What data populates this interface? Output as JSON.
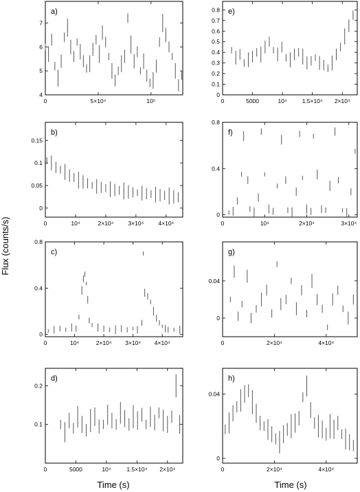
{
  "figure": {
    "ylabel": "Flux (counts/s)",
    "xlabel_left": "Time (s)",
    "xlabel_right": "Time (s)"
  },
  "chart_data": [
    {
      "type": "scatter",
      "panel": "a)",
      "xlim": [
        0,
        130000
      ],
      "ylim": [
        4,
        7.9
      ],
      "xticks": [
        {
          "v": 0,
          "t": "0"
        },
        {
          "v": 50000,
          "t": "5×10⁴"
        },
        {
          "v": 100000,
          "t": "10⁵"
        }
      ],
      "yticks": [
        {
          "v": 4,
          "t": "4"
        },
        {
          "v": 5,
          "t": "5"
        },
        {
          "v": 6,
          "t": "6"
        },
        {
          "v": 7,
          "t": "7"
        }
      ],
      "bar_step": 0.5,
      "x": [
        0,
        3000,
        6000,
        9000,
        12000,
        15000,
        18000,
        21000,
        24000,
        27000,
        30000,
        33000,
        36000,
        39000,
        42000,
        45000,
        48000,
        51000,
        54000,
        57000,
        60000,
        63000,
        66000,
        69000,
        72000,
        75000,
        78000,
        81000,
        84000,
        87000,
        90000,
        93000,
        96000,
        99000,
        102000,
        105000,
        108000,
        111000,
        114000,
        117000,
        120000,
        123000,
        126000,
        129000
      ],
      "y": [
        6.0,
        5.7,
        6.3,
        5.2,
        4.7,
        5.4,
        6.4,
        6.8,
        6.0,
        5.6,
        6.2,
        5.8,
        5.4,
        5.1,
        5.3,
        5.9,
        6.3,
        5.7,
        6.6,
        6.2,
        5.6,
        5.0,
        4.6,
        5.0,
        5.3,
        5.6,
        7.2,
        6.1,
        5.4,
        5.8,
        5.0,
        5.4,
        4.8,
        4.5,
        4.6,
        5.2,
        6.2,
        7.0,
        6.5,
        6.0,
        5.6,
        5.0,
        4.4,
        4.8
      ]
    },
    {
      "type": "scatter",
      "panel": "b)",
      "xlim": [
        0,
        45500
      ],
      "ylim": [
        -0.02,
        0.19
      ],
      "xticks": [
        {
          "v": 0,
          "t": "0"
        },
        {
          "v": 10000,
          "t": "10⁴"
        },
        {
          "v": 20000,
          "t": "2×10⁴"
        },
        {
          "v": 30000,
          "t": "3×10⁴"
        },
        {
          "v": 40000,
          "t": "4×10⁴"
        }
      ],
      "yticks": [
        {
          "v": 0,
          "t": "0"
        },
        {
          "v": 0.05,
          "t": "0.05"
        },
        {
          "v": 0.1,
          "t": "0.1"
        },
        {
          "v": 0.15,
          "t": "0.15"
        }
      ],
      "bar_step": 0.025,
      "x": [
        500,
        2000,
        3500,
        5000,
        6500,
        8000,
        9500,
        11000,
        12500,
        14000,
        15500,
        17000,
        18500,
        20000,
        21500,
        23000,
        24500,
        26000,
        27500,
        29000,
        30500,
        32000,
        33500,
        35000,
        36500,
        38000,
        39500,
        41000,
        42500,
        44000
      ],
      "y": [
        0.105,
        0.1,
        0.09,
        0.085,
        0.08,
        0.072,
        0.068,
        0.062,
        0.058,
        0.055,
        0.05,
        0.048,
        0.046,
        0.044,
        0.042,
        0.04,
        0.039,
        0.038,
        0.036,
        0.035,
        0.034,
        0.033,
        0.032,
        0.031,
        0.03,
        0.029,
        0.028,
        0.027,
        0.025,
        0.024
      ]
    },
    {
      "type": "scatter",
      "panel": "c)",
      "xlim": [
        0,
        47000
      ],
      "ylim": [
        -0.02,
        0.8
      ],
      "xticks": [
        {
          "v": 0,
          "t": "0"
        },
        {
          "v": 10000,
          "t": "10⁴"
        },
        {
          "v": 20000,
          "t": "2×10⁴"
        },
        {
          "v": 30000,
          "t": "3×10⁴"
        },
        {
          "v": 40000,
          "t": "4×10⁴"
        }
      ],
      "yticks": [
        {
          "v": 0,
          "t": "0"
        },
        {
          "v": 0.4,
          "t": "0.4"
        },
        {
          "v": 0.8,
          "t": "0.8"
        }
      ],
      "bar_step": 0.05,
      "x": [
        1000,
        3000,
        5000,
        7000,
        9000,
        10500,
        11500,
        12500,
        13000,
        13500,
        14000,
        14500,
        15000,
        16000,
        18000,
        20000,
        22000,
        24000,
        26000,
        28000,
        30000,
        31500,
        33000,
        33500,
        34000,
        35000,
        36000,
        37000,
        38000,
        39000,
        40000,
        41000,
        42000,
        44000,
        46000
      ],
      "y": [
        0.03,
        0.04,
        0.05,
        0.04,
        0.06,
        0.05,
        0.15,
        0.38,
        0.48,
        0.52,
        0.44,
        0.3,
        0.12,
        0.08,
        0.06,
        0.05,
        0.04,
        0.04,
        0.05,
        0.04,
        0.05,
        0.04,
        0.1,
        0.7,
        0.36,
        0.33,
        0.28,
        0.2,
        0.14,
        0.1,
        0.07,
        0.05,
        0.04,
        0.04,
        0.04
      ]
    },
    {
      "type": "scatter",
      "panel": "d)",
      "xlim": [
        0,
        22500
      ],
      "ylim": [
        0,
        0.245
      ],
      "xticks": [
        {
          "v": 0,
          "t": "0"
        },
        {
          "v": 5000,
          "t": "5000"
        },
        {
          "v": 10000,
          "t": "10⁴"
        },
        {
          "v": 15000,
          "t": "1.5×10⁴"
        },
        {
          "v": 20000,
          "t": "2×10⁴"
        }
      ],
      "yticks": [
        {
          "v": 0.1,
          "t": "0.1"
        },
        {
          "v": 0.2,
          "t": "0.2"
        }
      ],
      "bar_step": 0.04,
      "x": [
        2500,
        3200,
        3900,
        4600,
        5300,
        6000,
        6700,
        7400,
        8100,
        8800,
        9500,
        10200,
        10900,
        11600,
        12300,
        13000,
        13700,
        14400,
        15100,
        15800,
        16500,
        17200,
        17900,
        18600,
        19300,
        20000,
        20700,
        21400,
        22000
      ],
      "y": [
        0.1,
        0.08,
        0.11,
        0.09,
        0.12,
        0.1,
        0.085,
        0.11,
        0.12,
        0.095,
        0.1,
        0.125,
        0.11,
        0.1,
        0.13,
        0.115,
        0.1,
        0.12,
        0.11,
        0.125,
        0.1,
        0.12,
        0.105,
        0.13,
        0.11,
        0.1,
        0.12,
        0.2,
        0.1
      ]
    },
    {
      "type": "scatter",
      "panel": "e)",
      "xlim": [
        0,
        22500
      ],
      "ylim": [
        0,
        0.88
      ],
      "xticks": [
        {
          "v": 0,
          "t": "0"
        },
        {
          "v": 5000,
          "t": "5000"
        },
        {
          "v": 10000,
          "t": "10⁴"
        },
        {
          "v": 15000,
          "t": "1.5×10⁴"
        },
        {
          "v": 20000,
          "t": "2×10⁴"
        }
      ],
      "yticks": [
        {
          "v": 0,
          "t": "0"
        },
        {
          "v": 0.1,
          "t": "0.1"
        },
        {
          "v": 0.2,
          "t": "0.2"
        },
        {
          "v": 0.3,
          "t": "0.3"
        },
        {
          "v": 0.4,
          "t": "0.4"
        },
        {
          "v": 0.5,
          "t": "0.5"
        },
        {
          "v": 0.6,
          "t": "0.6"
        },
        {
          "v": 0.7,
          "t": "0.7"
        },
        {
          "v": 0.8,
          "t": "0.8"
        }
      ],
      "bar_step": 0.1,
      "x": [
        1500,
        2200,
        2900,
        3600,
        4300,
        5000,
        5700,
        6400,
        7100,
        7800,
        8500,
        9200,
        9900,
        10600,
        11300,
        12000,
        12700,
        13400,
        14100,
        14800,
        15500,
        16200,
        16900,
        17600,
        18300,
        19000,
        19700,
        20400,
        21100,
        21800
      ],
      "y": [
        0.42,
        0.35,
        0.38,
        0.3,
        0.33,
        0.36,
        0.4,
        0.38,
        0.45,
        0.5,
        0.42,
        0.38,
        0.45,
        0.35,
        0.33,
        0.38,
        0.4,
        0.36,
        0.3,
        0.32,
        0.35,
        0.3,
        0.28,
        0.25,
        0.3,
        0.38,
        0.45,
        0.55,
        0.65,
        0.75
      ]
    },
    {
      "type": "scatter",
      "panel": "f)",
      "xlim": [
        0,
        32000
      ],
      "ylim": [
        -0.02,
        0.8
      ],
      "xticks": [
        {
          "v": 0,
          "t": "0"
        },
        {
          "v": 10000,
          "t": "10⁴"
        },
        {
          "v": 20000,
          "t": "2×10⁴"
        },
        {
          "v": 30000,
          "t": "3×10⁴"
        }
      ],
      "yticks": [
        {
          "v": 0,
          "t": "0"
        },
        {
          "v": 0.4,
          "t": "0.4"
        },
        {
          "v": 0.8,
          "t": "0.8"
        }
      ],
      "bar_step": 0.06,
      "x": [
        1500,
        2500,
        3500,
        4500,
        5000,
        6000,
        6500,
        7500,
        8500,
        9200,
        10000,
        11000,
        12000,
        13000,
        14000,
        15000,
        15500,
        16500,
        17500,
        18300,
        19000,
        20000,
        21000,
        21600,
        22500,
        23500,
        24500,
        25500,
        26700,
        27500,
        28500,
        29500,
        30500,
        31500
      ],
      "y": [
        0.02,
        0.03,
        0.12,
        0.35,
        0.68,
        0.3,
        0.05,
        0.02,
        0.15,
        0.72,
        0.35,
        0.05,
        0.03,
        0.25,
        0.65,
        0.3,
        0.04,
        0.02,
        0.2,
        0.7,
        0.32,
        0.05,
        0.03,
        0.68,
        0.35,
        0.05,
        0.04,
        0.25,
        0.72,
        0.3,
        0.04,
        0.02,
        0.2,
        0.55
      ]
    },
    {
      "type": "scatter",
      "panel": "g)",
      "xlim": [
        0,
        52000
      ],
      "ylim": [
        -0.02,
        0.082
      ],
      "xticks": [
        {
          "v": 0,
          "t": "0"
        },
        {
          "v": 20000,
          "t": "2×10⁴"
        },
        {
          "v": 40000,
          "t": "4×10⁴"
        }
      ],
      "yticks": [
        {
          "v": 0,
          "t": "0"
        },
        {
          "v": 0.04,
          "t": "0.04"
        }
      ],
      "bar_step": 0.01,
      "x": [
        3000,
        4500,
        6000,
        7500,
        9500,
        11000,
        13000,
        15000,
        17000,
        19000,
        21000,
        22500,
        24500,
        26500,
        28500,
        30500,
        32500,
        34500,
        36500,
        38500,
        40500,
        42500,
        44500,
        46500,
        48500,
        50500
      ],
      "y": [
        0.02,
        0.05,
        0.002,
        0.015,
        0.045,
        0.0,
        0.01,
        0.02,
        0.03,
        0.005,
        0.058,
        0.015,
        0.02,
        0.04,
        0.01,
        0.03,
        0.005,
        0.04,
        0.02,
        0.01,
        -0.01,
        0.02,
        0.03,
        0.01,
        0.0,
        0.02
      ]
    },
    {
      "type": "scatter",
      "panel": "h)",
      "xlim": [
        0,
        52000
      ],
      "ylim": [
        -0.003,
        0.056
      ],
      "xticks": [
        {
          "v": 0,
          "t": "0"
        },
        {
          "v": 20000,
          "t": "2×10⁴"
        },
        {
          "v": 40000,
          "t": "4×10⁴"
        }
      ],
      "yticks": [
        {
          "v": 0,
          "t": "0"
        },
        {
          "v": 0.04,
          "t": "0.04"
        }
      ],
      "bar_step": 0.01,
      "x": [
        1000,
        2500,
        4000,
        5500,
        7000,
        8500,
        10000,
        11500,
        13000,
        14500,
        16000,
        17500,
        19000,
        20500,
        22000,
        23500,
        25000,
        26500,
        28000,
        29500,
        31000,
        32500,
        34000,
        35500,
        37000,
        38500,
        40000,
        41500,
        43000,
        44500,
        46000,
        47500,
        49000,
        50500
      ],
      "y": [
        0.018,
        0.022,
        0.028,
        0.032,
        0.036,
        0.04,
        0.042,
        0.035,
        0.028,
        0.022,
        0.02,
        0.018,
        0.015,
        0.012,
        0.01,
        0.015,
        0.018,
        0.02,
        0.022,
        0.025,
        0.038,
        0.045,
        0.03,
        0.022,
        0.02,
        0.018,
        0.015,
        0.02,
        0.018,
        0.022,
        0.015,
        0.012,
        0.01,
        0.008
      ]
    }
  ]
}
